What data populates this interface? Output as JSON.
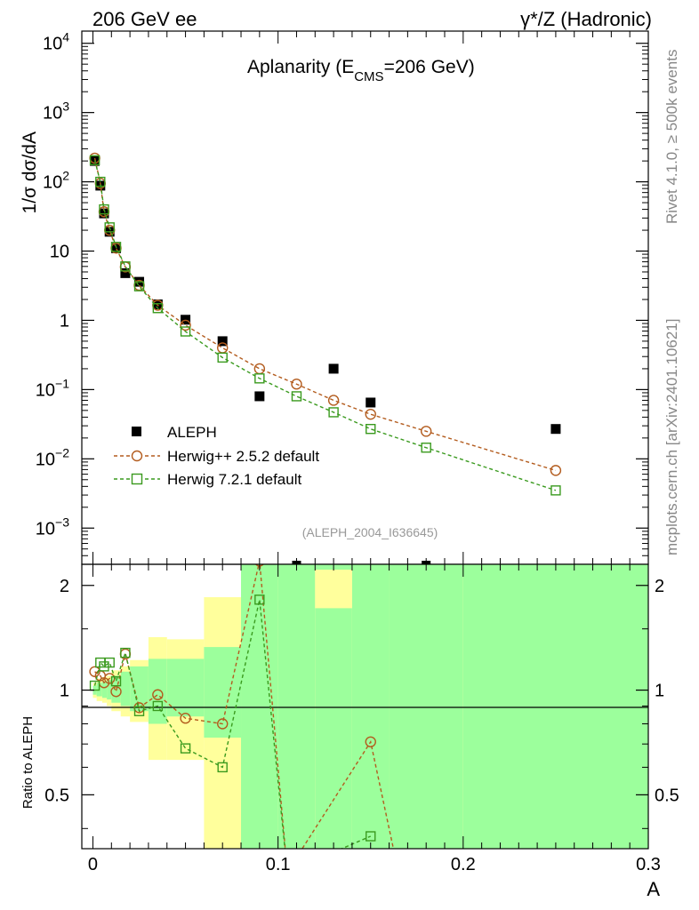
{
  "header": {
    "left": "206 GeV ee",
    "right": "γ*/Z (Hadronic)"
  },
  "side_text": {
    "top": "Rivet 4.1.0, ≥ 500k events",
    "bottom": "mcplots.cern.ch [arXiv:2401.10621]"
  },
  "colors": {
    "data": "#000000",
    "herwigpp": "#b35c1e",
    "herwig7": "#3a9a1e",
    "band_inner": "#9cff9c",
    "band_outer": "#ffff9c"
  },
  "chart_data": [
    {
      "type": "scatter",
      "name": "main",
      "title_main": "Aplanarity (E",
      "title_sub": "CMS",
      "title_tail": "=206 GeV)",
      "ylabel": "1/σ  dσ/dA",
      "yscale": "log",
      "ylim": [
        0.0003,
        15000
      ],
      "xlim": [
        -0.006,
        0.3
      ],
      "y_ticks": [
        {
          "value": 10000,
          "base": "10",
          "exp": "4"
        },
        {
          "value": 1000,
          "base": "10",
          "exp": "3"
        },
        {
          "value": 100,
          "base": "10",
          "exp": "2"
        },
        {
          "value": 10,
          "base": "10",
          "exp": ""
        },
        {
          "value": 1,
          "base": "1",
          "exp": ""
        },
        {
          "value": 0.1,
          "base": "10",
          "exp": "−1"
        },
        {
          "value": 0.01,
          "base": "10",
          "exp": "−2"
        },
        {
          "value": 0.001,
          "base": "10",
          "exp": "−3"
        }
      ],
      "reference": "(ALEPH_2004_I636645)",
      "legend": [
        "ALEPH",
        "Herwig++ 2.5.2 default",
        "Herwig 7.2.1 default"
      ],
      "series": [
        {
          "name": "ALEPH",
          "style": "square-filled",
          "x": [
            0.001,
            0.004,
            0.006,
            0.009,
            0.0125,
            0.0175,
            0.025,
            0.035,
            0.05,
            0.07,
            0.09,
            0.11,
            0.13,
            0.15,
            0.18,
            0.25
          ],
          "y": [
            200,
            88,
            35,
            19,
            11,
            4.8,
            3.6,
            1.7,
            1.02,
            0.5,
            0.08,
            0.0002,
            0.2,
            0.065,
            0.0002,
            0.027
          ]
        },
        {
          "name": "Herwig++ 2.5.2 default",
          "style": "circle-open",
          "x": [
            0.001,
            0.004,
            0.006,
            0.009,
            0.0125,
            0.0175,
            0.025,
            0.035,
            0.05,
            0.07,
            0.09,
            0.11,
            0.13,
            0.15,
            0.18,
            0.25
          ],
          "y": [
            220,
            95,
            37,
            20,
            11,
            5.9,
            3.2,
            1.65,
            0.85,
            0.4,
            0.2,
            0.12,
            0.07,
            0.044,
            0.025,
            0.0068
          ]
        },
        {
          "name": "Herwig 7.2.1 default",
          "style": "square-open",
          "x": [
            0.001,
            0.004,
            0.006,
            0.009,
            0.0125,
            0.0175,
            0.025,
            0.035,
            0.05,
            0.07,
            0.09,
            0.11,
            0.13,
            0.15,
            0.18,
            0.25
          ],
          "y": [
            205,
            100,
            40,
            22,
            11.5,
            6.0,
            3.1,
            1.5,
            0.69,
            0.29,
            0.145,
            0.08,
            0.047,
            0.027,
            0.0145,
            0.0035
          ]
        }
      ]
    },
    {
      "type": "line",
      "name": "ratio",
      "ylabel": "Ratio to ALEPH",
      "xlabel": "A",
      "ylim": [
        0.35,
        2.3
      ],
      "xlim": [
        -0.006,
        0.3
      ],
      "x_ticks": [
        "0",
        "0.1",
        "0.2",
        "0.3"
      ],
      "x_tick_values": [
        0,
        0.1,
        0.2,
        0.3
      ],
      "y_ticks": [
        "0.5",
        "1",
        "2"
      ],
      "y_tick_values": [
        0.5,
        1,
        2
      ],
      "bands": [
        {
          "x0": 0.0,
          "x1": 0.002,
          "y_inner": [
            0.97,
            1.03
          ],
          "y_outer": [
            0.95,
            1.05
          ]
        },
        {
          "x0": 0.002,
          "x1": 0.005,
          "y_inner": [
            0.96,
            1.05
          ],
          "y_outer": [
            0.93,
            1.08
          ]
        },
        {
          "x0": 0.005,
          "x1": 0.0075,
          "y_inner": [
            0.95,
            1.06
          ],
          "y_outer": [
            0.92,
            1.09
          ]
        },
        {
          "x0": 0.0075,
          "x1": 0.01,
          "y_inner": [
            0.94,
            1.07
          ],
          "y_outer": [
            0.9,
            1.1
          ]
        },
        {
          "x0": 0.01,
          "x1": 0.015,
          "y_inner": [
            0.92,
            1.1
          ],
          "y_outer": [
            0.87,
            1.14
          ]
        },
        {
          "x0": 0.015,
          "x1": 0.02,
          "y_inner": [
            0.9,
            1.13
          ],
          "y_outer": [
            0.84,
            1.17
          ]
        },
        {
          "x0": 0.02,
          "x1": 0.03,
          "y_inner": [
            0.87,
            1.17
          ],
          "y_outer": [
            0.81,
            1.22
          ]
        },
        {
          "x0": 0.03,
          "x1": 0.04,
          "y_inner": [
            0.8,
            1.23
          ],
          "y_outer": [
            0.63,
            1.42
          ]
        },
        {
          "x0": 0.04,
          "x1": 0.06,
          "y_inner": [
            0.84,
            1.23
          ],
          "y_outer": [
            0.63,
            1.4
          ]
        },
        {
          "x0": 0.06,
          "x1": 0.08,
          "y_inner": [
            0.73,
            1.33
          ],
          "y_outer": [
            0.3,
            1.85
          ]
        },
        {
          "x0": 0.08,
          "x1": 0.1,
          "y_inner": [
            0.3,
            2.4
          ],
          "y_outer": [
            0.3,
            2.4
          ]
        },
        {
          "x0": 0.1,
          "x1": 0.12,
          "y_inner": [
            0.3,
            2.4
          ],
          "y_outer": [
            0.3,
            2.4
          ]
        },
        {
          "x0": 0.12,
          "x1": 0.14,
          "y_inner": [
            0.3,
            2.4
          ],
          "y_outer": [
            0.3,
            2.4
          ]
        },
        {
          "x0": 0.14,
          "x1": 0.16,
          "y_inner": [
            0.3,
            2.4
          ],
          "y_outer": [
            0.3,
            2.4
          ]
        },
        {
          "x0": 0.16,
          "x1": 0.2,
          "y_inner": [
            0.3,
            2.4
          ],
          "y_outer": [
            0.3,
            2.4
          ]
        },
        {
          "x0": 0.2,
          "x1": 0.3,
          "y_inner": [
            0.3,
            2.4
          ],
          "y_outer": [
            0.3,
            2.4
          ]
        }
      ],
      "yellow_patches": [
        {
          "x0": 0.12,
          "x1": 0.14,
          "y0": 1.72,
          "y1": 2.22
        }
      ],
      "series": [
        {
          "name": "Herwig++ 2.5.2 default",
          "style": "circle-open",
          "x": [
            0.001,
            0.004,
            0.006,
            0.009,
            0.0125,
            0.0175,
            0.025,
            0.035,
            0.05,
            0.07,
            0.09,
            0.105,
            0.15,
            0.165
          ],
          "y": [
            1.13,
            1.1,
            1.05,
            1.08,
            0.99,
            1.27,
            0.89,
            0.97,
            0.83,
            0.8,
            2.35,
            0.3,
            0.71,
            0.3
          ],
          "markers_shown": [
            true,
            true,
            true,
            true,
            true,
            true,
            true,
            true,
            true,
            true,
            true,
            false,
            true,
            false
          ]
        },
        {
          "name": "Herwig 7.2.1 default",
          "style": "square-open",
          "x": [
            0.001,
            0.004,
            0.006,
            0.009,
            0.0125,
            0.0175,
            0.025,
            0.035,
            0.05,
            0.07,
            0.09,
            0.105,
            0.15
          ],
          "y": [
            1.03,
            1.2,
            1.17,
            1.2,
            1.06,
            1.28,
            0.87,
            0.9,
            0.68,
            0.6,
            1.82,
            0.3,
            0.38
          ],
          "markers_shown": [
            true,
            true,
            true,
            true,
            true,
            true,
            true,
            true,
            true,
            true,
            true,
            false,
            true
          ]
        }
      ]
    }
  ]
}
